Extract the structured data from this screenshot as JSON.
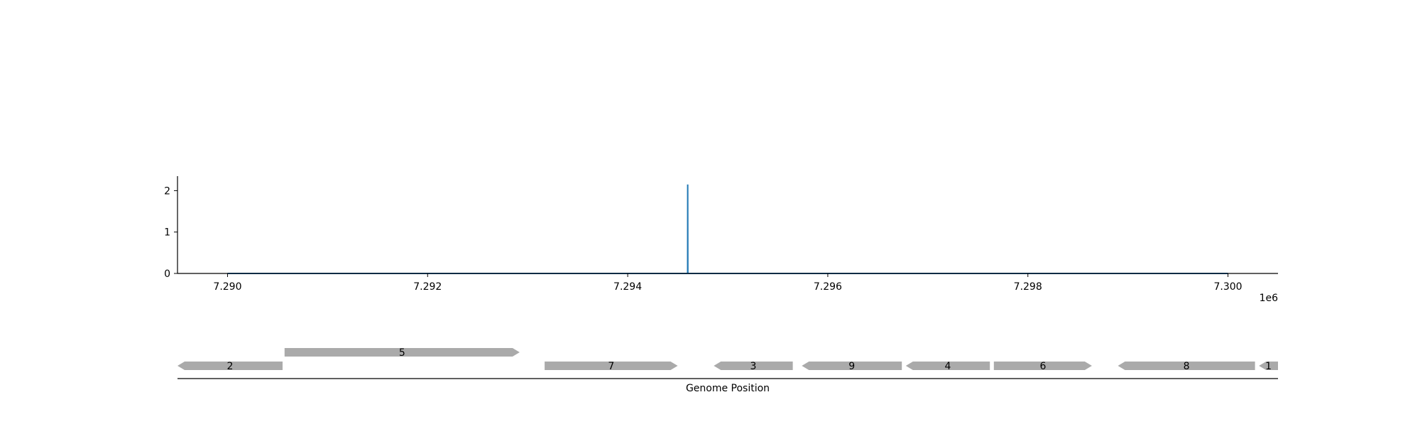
{
  "chart_data": [
    {
      "type": "line",
      "title": "",
      "xlabel": "",
      "ylabel": "",
      "xlim": [
        7289500,
        7300500
      ],
      "ylim": [
        0,
        2.35
      ],
      "x_offset_label": "1e6",
      "x_ticks": [
        7290000,
        7292000,
        7294000,
        7296000,
        7298000,
        7300000
      ],
      "x_tick_labels": [
        "7.290",
        "7.292",
        "7.294",
        "7.296",
        "7.298",
        "7.300"
      ],
      "y_ticks": [
        0,
        1,
        2
      ],
      "y_tick_labels": [
        "0",
        "1",
        "2"
      ],
      "grid": false,
      "series": [
        {
          "color": "#1f77b4",
          "x": [
            7290000,
            7294599,
            7294600,
            7294601,
            7300000
          ],
          "y": [
            0,
            0,
            2.15,
            0,
            0
          ]
        }
      ]
    },
    {
      "type": "gene_track",
      "xlabel": "Genome Position",
      "color": "#aaaaaa",
      "genes": [
        {
          "label": "2",
          "start": 7289500,
          "end": 7290550,
          "strand": "-",
          "row": 0
        },
        {
          "label": "5",
          "start": 7290570,
          "end": 7292920,
          "strand": "+",
          "row": 1
        },
        {
          "label": "7",
          "start": 7293170,
          "end": 7294500,
          "strand": "+",
          "row": 0
        },
        {
          "label": "3",
          "start": 7294860,
          "end": 7295650,
          "strand": "-",
          "row": 0
        },
        {
          "label": "9",
          "start": 7295740,
          "end": 7296740,
          "strand": "-",
          "row": 0
        },
        {
          "label": "4",
          "start": 7296780,
          "end": 7297620,
          "strand": "-",
          "row": 0
        },
        {
          "label": "6",
          "start": 7297660,
          "end": 7298640,
          "strand": "+",
          "row": 0
        },
        {
          "label": "8",
          "start": 7298900,
          "end": 7300270,
          "strand": "-",
          "row": 0
        },
        {
          "label": "1",
          "start": 7300310,
          "end": 7300500,
          "strand": "-",
          "row": 0
        }
      ]
    }
  ]
}
